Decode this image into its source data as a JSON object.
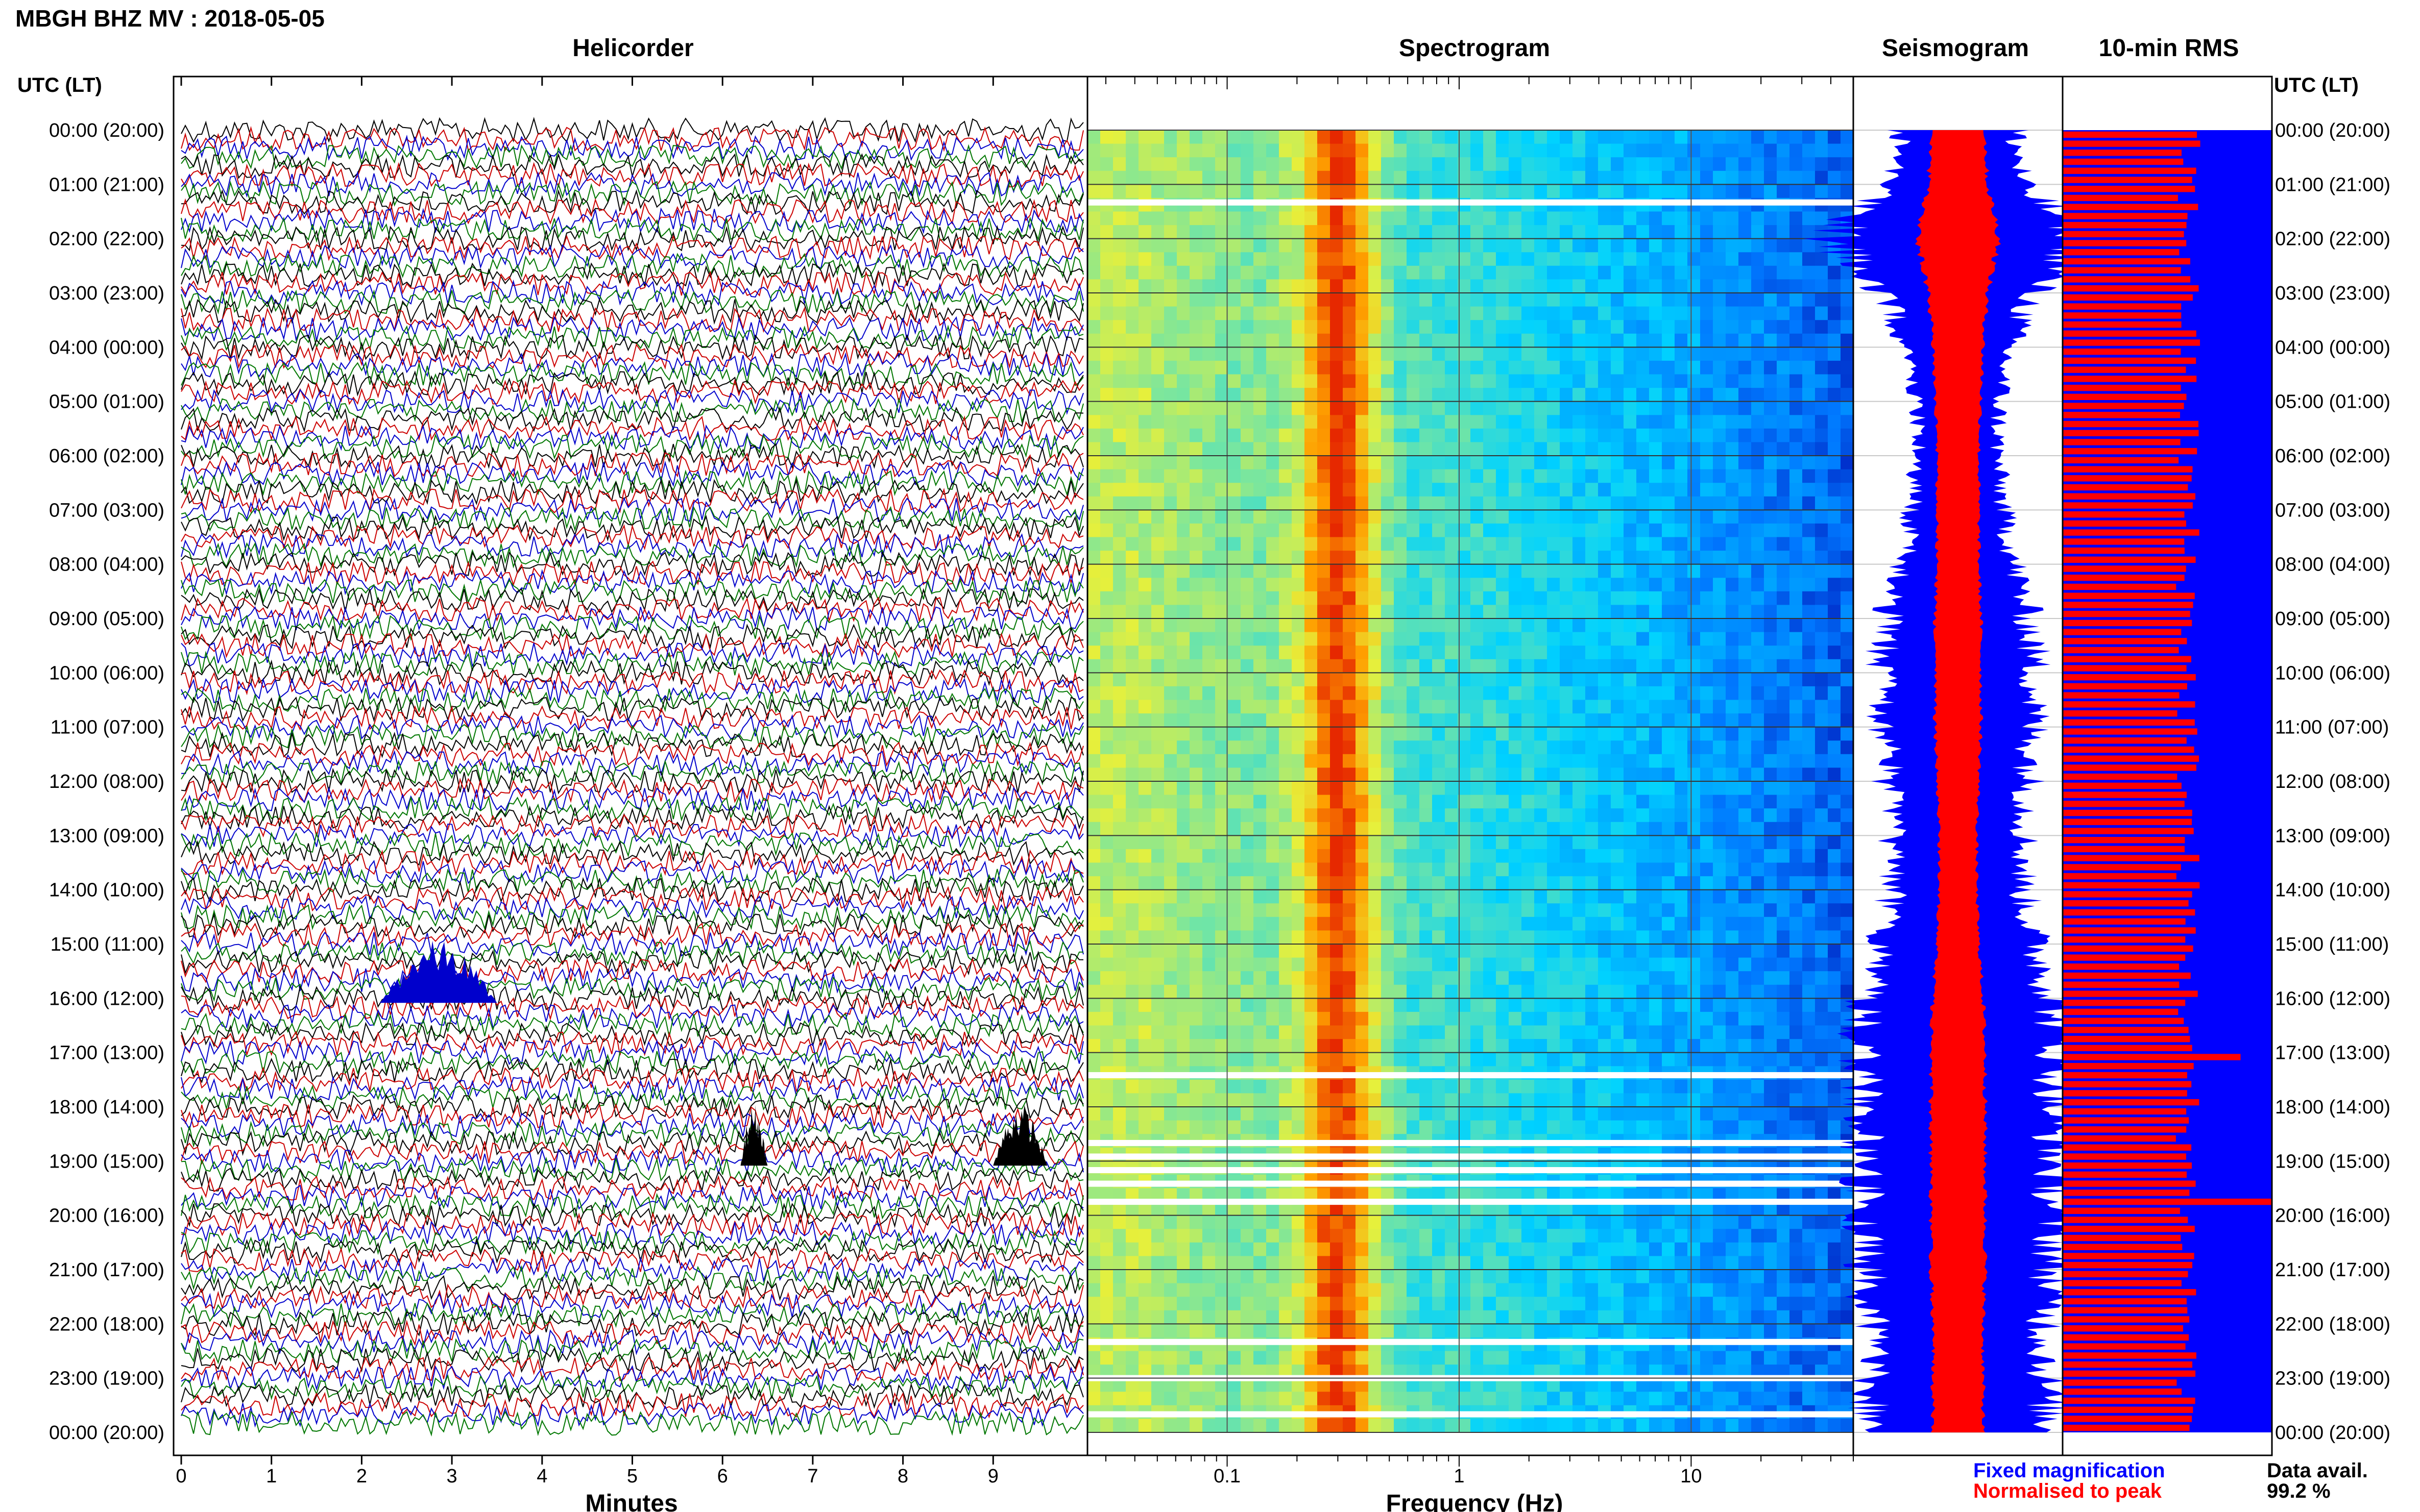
{
  "header": {
    "title": "MBGH BHZ MV : 2018-05-05",
    "left_axis_label": "UTC (LT)",
    "right_axis_label": "UTC (LT)"
  },
  "panels": {
    "helicorder": "Helicorder",
    "spectrogram": "Spectrogram",
    "seismogram": "Seismogram",
    "rms": "10-min RMS"
  },
  "time_labels": [
    "00:00 (20:00)",
    "01:00 (21:00)",
    "02:00 (22:00)",
    "03:00 (23:00)",
    "04:00 (00:00)",
    "05:00 (01:00)",
    "06:00 (02:00)",
    "07:00 (03:00)",
    "08:00 (04:00)",
    "09:00 (05:00)",
    "10:00 (06:00)",
    "11:00 (07:00)",
    "12:00 (08:00)",
    "13:00 (09:00)",
    "14:00 (10:00)",
    "15:00 (11:00)",
    "16:00 (12:00)",
    "17:00 (13:00)",
    "18:00 (14:00)",
    "19:00 (15:00)",
    "20:00 (16:00)",
    "21:00 (17:00)",
    "22:00 (18:00)",
    "23:00 (19:00)",
    "00:00 (20:00)"
  ],
  "helicorder_axis": {
    "label": "Minutes",
    "ticks": [
      "0",
      "1",
      "2",
      "3",
      "4",
      "5",
      "6",
      "7",
      "8",
      "9"
    ]
  },
  "spectrogram_axis": {
    "label": "Frequency (Hz)",
    "ticks": [
      "0.1",
      "1",
      "10"
    ]
  },
  "legend": {
    "fixed": "Fixed magnification",
    "normalised": "Normalised to peak"
  },
  "availability": {
    "label": "Data avail.",
    "value": "99.2 %"
  },
  "colors": {
    "trace_cycle": [
      "#000000",
      "#cc0000",
      "#0000cc",
      "#007700"
    ],
    "seismogram_fixed": "#0000ff",
    "seismogram_normalised": "#ff0000",
    "rms_bar": "#ff0000",
    "rms_background": "#0000ff",
    "legend_fixed": "#0000ff",
    "legend_normalised": "#ff0000"
  },
  "chart_data": [
    {
      "type": "line",
      "title": "Helicorder",
      "xlabel": "Minutes",
      "xlim": [
        0,
        10
      ],
      "ylim": [
        "00:00",
        "24:00"
      ],
      "rows_per_hour": 6,
      "row_count": 144,
      "events": [
        {
          "time": "16:00",
          "minute_start": 2.2,
          "minute_end": 3.5
        },
        {
          "time": "19:00",
          "minute_start": 6.2,
          "minute_end": 6.5
        },
        {
          "time": "19:00",
          "minute_start": 9.0,
          "minute_end": 9.6
        }
      ]
    },
    {
      "type": "heatmap",
      "title": "Spectrogram",
      "xlabel": "Frequency (Hz)",
      "xscale": "log",
      "xlim": [
        0.025,
        50
      ],
      "ylim": [
        "00:00",
        "24:00"
      ],
      "dominant_band_hz": [
        0.2,
        0.45
      ],
      "data_gaps": [
        "01:20",
        "17:25",
        "18:40",
        "18:55",
        "19:10",
        "19:25",
        "19:45",
        "22:20",
        "23:00",
        "23:40"
      ]
    },
    {
      "type": "area",
      "title": "Seismogram",
      "series": [
        {
          "name": "Fixed magnification",
          "values": [
            0.28,
            0.3,
            0.62,
            0.36,
            0.24,
            0.2,
            0.19,
            0.22,
            0.27,
            0.34,
            0.37,
            0.36,
            0.34,
            0.32,
            0.31,
            0.37,
            0.46,
            0.48,
            0.46,
            0.46,
            0.46,
            0.45,
            0.42,
            0.42,
            0.43
          ]
        },
        {
          "name": "Normalised to peak",
          "values": [
            0.13,
            0.14,
            0.2,
            0.14,
            0.12,
            0.11,
            0.1,
            0.1,
            0.1,
            0.11,
            0.11,
            0.11,
            0.1,
            0.09,
            0.09,
            0.1,
            0.12,
            0.13,
            0.13,
            0.13,
            0.13,
            0.13,
            0.12,
            0.12,
            0.12
          ]
        }
      ],
      "ylim": [
        "00:00",
        "24:00"
      ]
    },
    {
      "type": "bar",
      "title": "10-min RMS",
      "bar_count": 144,
      "typical_value": 0.6,
      "spikes": [
        {
          "time": "19:40",
          "value": 1.0
        },
        {
          "time": "17:00",
          "value": 0.85
        }
      ],
      "ylim": [
        "00:00",
        "24:00"
      ]
    }
  ]
}
